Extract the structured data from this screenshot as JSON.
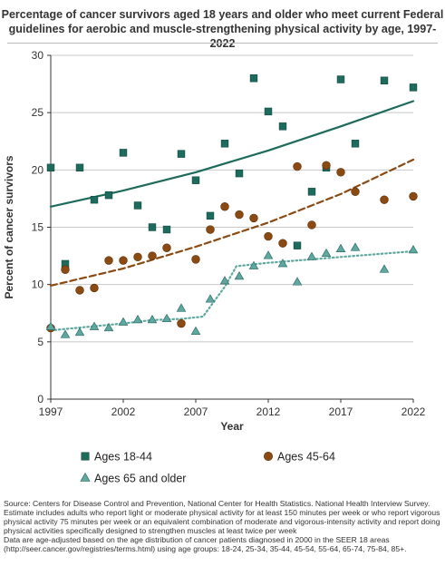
{
  "chart_data": {
    "type": "scatter",
    "title": "Percentage of cancer survivors aged 18 years and older who meet current Federal guidelines for aerobic and muscle-strengthening physical activity by age, 1997-2022",
    "xlabel": "Year",
    "ylabel": "Percent of cancer survivors",
    "xlim": [
      1997,
      2022
    ],
    "ylim": [
      0,
      30
    ],
    "xticks": [
      1997,
      2002,
      2007,
      2012,
      2017,
      2022
    ],
    "yticks": [
      0,
      5,
      10,
      15,
      20,
      25,
      30
    ],
    "grid": "horizontal",
    "legend_position": "bottom",
    "x": [
      1997,
      1998,
      1999,
      2000,
      2001,
      2002,
      2003,
      2004,
      2005,
      2006,
      2007,
      2008,
      2009,
      2010,
      2011,
      2012,
      2013,
      2014,
      2015,
      2016,
      2017,
      2018,
      2020,
      2022
    ],
    "series": [
      {
        "name": "Ages 18-44",
        "marker": "square",
        "color": "#1d6b5c",
        "values": [
          20.2,
          11.8,
          20.2,
          17.4,
          17.8,
          21.5,
          16.9,
          15.0,
          14.8,
          21.4,
          19.1,
          16.0,
          22.3,
          19.7,
          28.0,
          25.1,
          23.8,
          13.4,
          18.1,
          20.2,
          27.9,
          22.3,
          27.8,
          27.2
        ],
        "trend": {
          "style": "solid",
          "x": [
            1997,
            2002,
            2007,
            2012,
            2017,
            2022
          ],
          "y": [
            16.8,
            18.2,
            19.8,
            21.7,
            23.8,
            26.0
          ]
        }
      },
      {
        "name": "Ages 45-64",
        "marker": "circle",
        "color": "#8b4a12",
        "values": [
          6.2,
          11.3,
          9.5,
          9.7,
          12.1,
          12.1,
          12.4,
          12.5,
          13.2,
          6.6,
          12.2,
          14.8,
          16.8,
          16.1,
          15.8,
          14.2,
          13.6,
          20.3,
          15.2,
          20.4,
          19.8,
          18.1,
          17.4,
          17.7
        ],
        "trend": {
          "style": "dashed",
          "x": [
            1997,
            2002,
            2007,
            2012,
            2017,
            2022
          ],
          "y": [
            9.9,
            11.4,
            13.3,
            15.4,
            17.9,
            20.9
          ]
        }
      },
      {
        "name": "Ages 65 and older",
        "marker": "triangle",
        "color": "#5fa8a0",
        "values": [
          6.3,
          5.6,
          5.8,
          6.3,
          6.2,
          6.7,
          6.9,
          6.9,
          7.0,
          7.9,
          5.9,
          8.7,
          10.3,
          10.7,
          11.6,
          12.5,
          11.8,
          10.2,
          12.4,
          12.7,
          13.1,
          13.2,
          11.3,
          13.0
        ],
        "trend": {
          "style": "dotted",
          "x": [
            1997,
            2002,
            2004,
            2006,
            2007.5,
            2009,
            2009.8,
            2012,
            2017,
            2022
          ],
          "y": [
            6.0,
            6.6,
            6.9,
            7.0,
            7.2,
            9.8,
            11.6,
            11.9,
            12.4,
            12.9
          ]
        }
      }
    ]
  },
  "footnotes": {
    "source": "Source: Centers for Disease Control and Prevention, National Center for Health Statistics. National Health Interview Survey.",
    "note1": "Estimate includes adults who report light or moderate physical activity for at least 150 minutes per week or who report vigorous physical activity 75 minutes per week or an equivalent combination of moderate and vigorous-intensity activity and report doing physical activities specifically designed to strengthen muscles at least twice per week",
    "note2": "Data are age-adjusted based on the age distribution of cancer patients diagnosed in 2000 in the SEER 18 areas (http://seer.cancer.gov/registries/terms.html) using age groups: 18-24, 25-34, 35-44, 45-54, 55-64, 65-74, 75-84, 85+."
  }
}
